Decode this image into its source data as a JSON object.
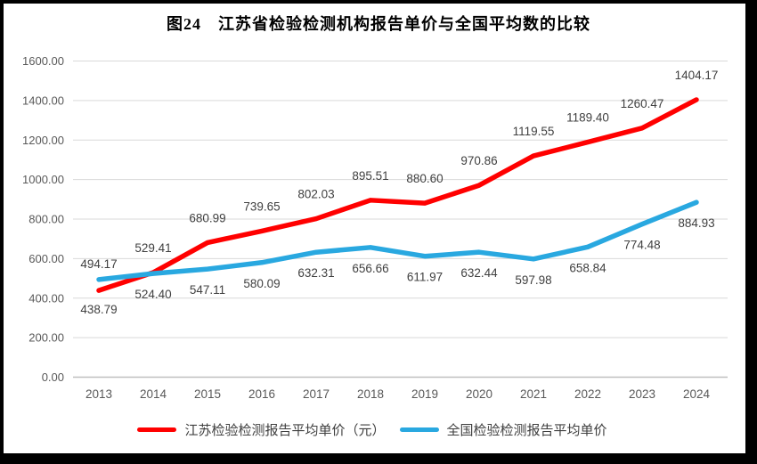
{
  "title": "图24　江苏省检验检测机构报告单价与全国平均数的比较",
  "colors": {
    "jiangsu_line": "#ff0000",
    "national_line": "#29a8e0",
    "gridline": "#d9d9d9",
    "axis_line": "#bfbfbf",
    "tick_text": "#595959",
    "data_label_text": "#404040",
    "frame_border": "#000000",
    "background": "#ffffff"
  },
  "chart_data": {
    "type": "line",
    "title": "图24　江苏省检验检测机构报告单价与全国平均数的比较",
    "categories": [
      "2013",
      "2014",
      "2015",
      "2016",
      "2017",
      "2018",
      "2019",
      "2020",
      "2021",
      "2022",
      "2023",
      "2024"
    ],
    "series": [
      {
        "name": "江苏检验检测报告平均单价（元）",
        "color": "#ff0000",
        "values": [
          438.79,
          529.41,
          680.99,
          739.65,
          802.03,
          895.51,
          880.6,
          970.86,
          1119.55,
          1189.4,
          1260.47,
          1404.17
        ]
      },
      {
        "name": "全国检验检测报告平均单价",
        "color": "#29a8e0",
        "values": [
          494.17,
          524.4,
          547.11,
          580.09,
          632.31,
          656.66,
          611.97,
          632.44,
          597.98,
          658.84,
          774.48,
          884.93
        ]
      }
    ],
    "xlabel": "",
    "ylabel": "",
    "ylim": [
      0,
      1600
    ],
    "ytick_step": 200,
    "ytick_labels": [
      "0.00",
      "200.00",
      "400.00",
      "600.00",
      "800.00",
      "1000.00",
      "1200.00",
      "1400.00",
      "1600.00"
    ],
    "grid": true,
    "legend_position": "bottom",
    "data_labels": true,
    "data_labels_decimals": 2
  }
}
